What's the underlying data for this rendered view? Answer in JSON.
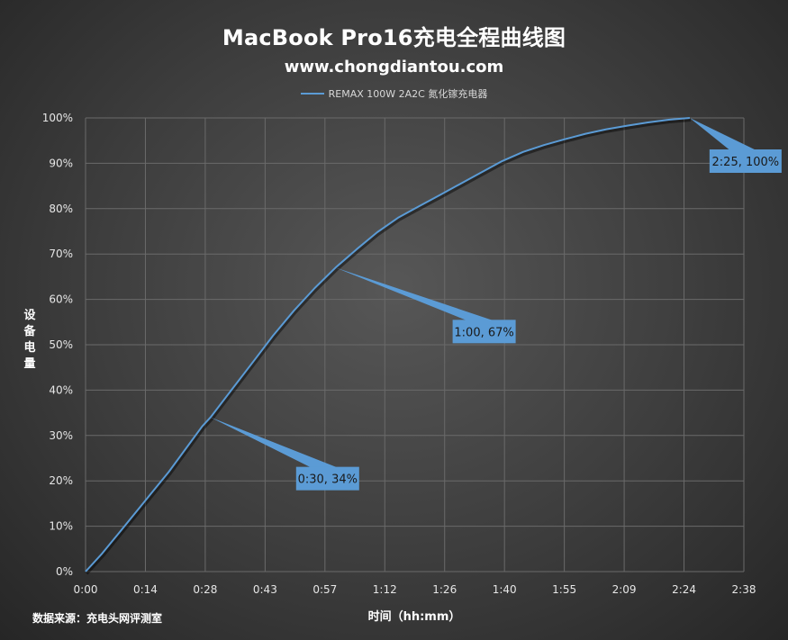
{
  "title": "MacBook Pro16充电全程曲线图",
  "subtitle": "www.chongdiantou.com",
  "legend_label": "REMAX 100W 2A2C 氮化镓充电器",
  "source": "数据来源：充电头网评测室",
  "colors": {
    "series": "#5b9bd5",
    "callout": "#5b9bd5",
    "grid": "#6a6a6a"
  },
  "chart_data": {
    "type": "line",
    "title": "MacBook Pro16充电全程曲线图",
    "xlabel": "时间（hh:mm）",
    "ylabel": "设备电量",
    "x_ticks": [
      "0:00",
      "0:14",
      "0:28",
      "0:43",
      "0:57",
      "1:12",
      "1:26",
      "1:40",
      "1:55",
      "2:09",
      "2:24",
      "2:38"
    ],
    "y_ticks": [
      "0%",
      "10%",
      "20%",
      "30%",
      "40%",
      "50%",
      "60%",
      "70%",
      "80%",
      "90%",
      "100%"
    ],
    "xlim_minutes": [
      0,
      158
    ],
    "ylim": [
      0,
      100
    ],
    "grid": true,
    "legend_position": "top",
    "series": [
      {
        "name": "REMAX 100W 2A2C 氮化镓充电器",
        "x_minutes": [
          0,
          1,
          4,
          8,
          12,
          16,
          20,
          24,
          28,
          30,
          35,
          40,
          45,
          50,
          55,
          60,
          65,
          70,
          75,
          80,
          85,
          90,
          95,
          100,
          105,
          110,
          115,
          120,
          125,
          130,
          135,
          140,
          145
        ],
        "y_percent": [
          0,
          1,
          4,
          8.5,
          13,
          17.5,
          22,
          27,
          32,
          34,
          40,
          46,
          52,
          57.5,
          62.5,
          67,
          71,
          74.8,
          78,
          80.5,
          83,
          85.5,
          88,
          90.5,
          92.5,
          94,
          95.3,
          96.5,
          97.5,
          98.3,
          99,
          99.6,
          100
        ]
      }
    ],
    "annotations": [
      {
        "label": "0:30, 34%",
        "x_minutes": 30,
        "y_percent": 34
      },
      {
        "label": "1:00, 67%",
        "x_minutes": 60,
        "y_percent": 67
      },
      {
        "label": "2:25, 100%",
        "x_minutes": 145,
        "y_percent": 100
      }
    ]
  }
}
